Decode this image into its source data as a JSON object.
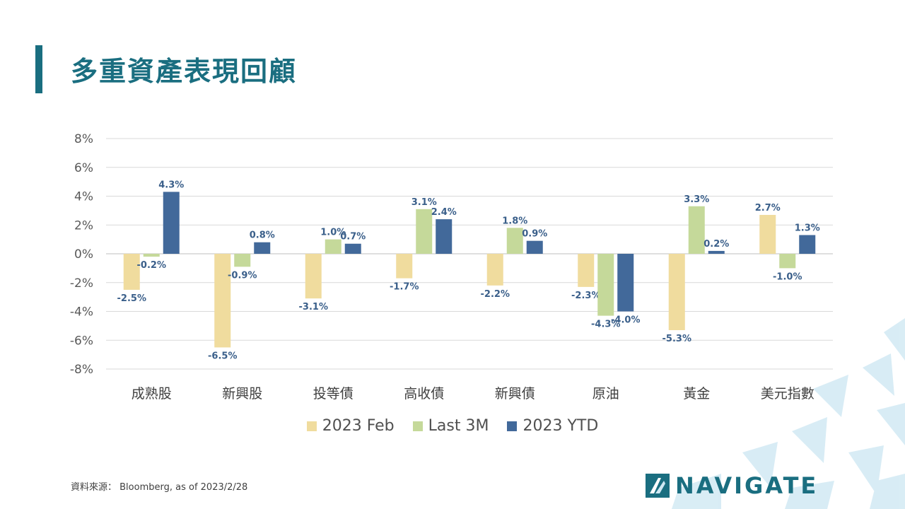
{
  "page": {
    "title": "多重資產表現回顧",
    "source": "資料來源： Bloomberg,  as of 2023/2/28",
    "logo_text": "NAVIGATE"
  },
  "chart_data": {
    "type": "bar",
    "categories": [
      "成熟股",
      "新興股",
      "投等債",
      "高收債",
      "新興債",
      "原油",
      "黃金",
      "美元指數"
    ],
    "series": [
      {
        "name": "2023 Feb",
        "color": "#f0dc9e",
        "values": [
          -2.5,
          -6.5,
          -3.1,
          -1.7,
          -2.2,
          -2.3,
          -5.3,
          2.7
        ]
      },
      {
        "name": "Last 3M",
        "color": "#c5d99a",
        "values": [
          -0.2,
          -0.9,
          1.0,
          3.1,
          1.8,
          -4.3,
          3.3,
          -1.0
        ]
      },
      {
        "name": "2023 YTD",
        "color": "#42699a",
        "values": [
          4.3,
          0.8,
          0.7,
          2.4,
          0.9,
          -4.0,
          0.2,
          1.3
        ]
      }
    ],
    "value_labels": [
      [
        "-2.5%",
        "-6.5%",
        "-3.1%",
        "-1.7%",
        "-2.2%",
        "-2.3%",
        "-5.3%",
        "2.7%"
      ],
      [
        "-0.2%",
        "-0.9%",
        "1.0%",
        "3.1%",
        "1.8%",
        "-4.3%",
        "3.3%",
        "-1.0%"
      ],
      [
        "4.3%",
        "0.8%",
        "0.7%",
        "2.4%",
        "0.9%",
        "-4.0%",
        "0.2%",
        "1.3%"
      ]
    ],
    "y_ticks": [
      "8%",
      "6%",
      "4%",
      "2%",
      "0%",
      "-2%",
      "-4%",
      "-6%",
      "-8%"
    ],
    "ylim": [
      -8,
      8
    ],
    "grid": true,
    "legend_position": "bottom"
  }
}
